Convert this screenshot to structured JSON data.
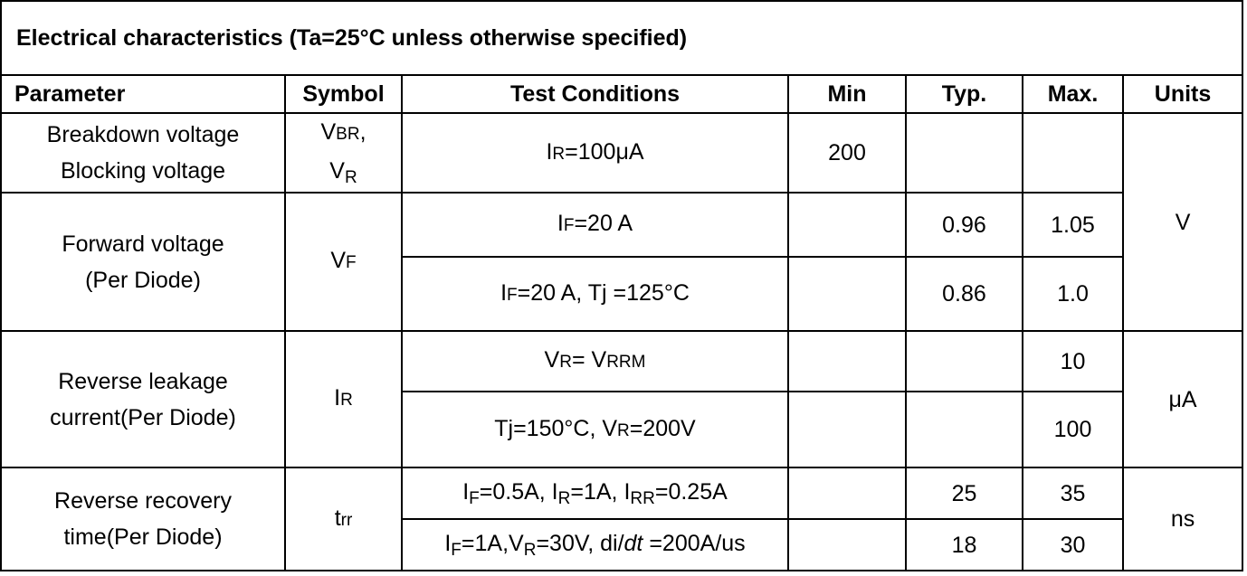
{
  "title": "Electrical characteristics (Ta=25°C unless otherwise specified)",
  "headers": {
    "parameter": "Parameter",
    "symbol": "Symbol",
    "conditions": "Test Conditions",
    "min": "Min",
    "typ": "Typ.",
    "max": "Max.",
    "units": "Units"
  },
  "rows": {
    "breakdown": {
      "param_line1": "Breakdown voltage",
      "param_line2": "Blocking voltage",
      "sym1_main": "V",
      "sym1_sub": "BR",
      "sym1_suffix": ",",
      "sym2_main": "V",
      "sym2_sub": "R",
      "cond_main": "I",
      "cond_sub": "R",
      "cond_rest": "=100μA",
      "min": "200",
      "typ": "",
      "max": ""
    },
    "forward": {
      "param_line1": "Forward voltage",
      "param_line2": "(Per Diode)",
      "sym_main": "V",
      "sym_sub": "F",
      "c1_main": "I",
      "c1_sub": "F",
      "c1_rest": "=20 A",
      "c1_min": "",
      "c1_typ": "0.96",
      "c1_max": "1.05",
      "c2_main": "I",
      "c2_sub": "F",
      "c2_rest": "=20 A, Tj =125°C",
      "c2_min": "",
      "c2_typ": "0.86",
      "c2_max": "1.0"
    },
    "units_v": "V",
    "leakage": {
      "param_line1": "Reverse leakage",
      "param_line2": "current(Per Diode)",
      "sym_main": "I",
      "sym_sub": "R",
      "c1_a": "V",
      "c1_a_sub": "R",
      "c1_b": "= V",
      "c1_b_sub": "RRM",
      "c1_min": "",
      "c1_typ": "",
      "c1_max": "10",
      "c2_a": "Tj=150°C, V",
      "c2_a_sub": "R",
      "c2_b": "=200V",
      "c2_min": "",
      "c2_typ": "",
      "c2_max": "100",
      "units": "μA"
    },
    "recovery": {
      "param_line1": "Reverse recovery",
      "param_line2": "time(Per Diode)",
      "sym_main": "t",
      "sym_sub": "rr",
      "c1_p1": "I",
      "c1_s1": "F",
      "c1_p2": "=0.5A, I",
      "c1_s2": "R",
      "c1_p3": "=1A, I",
      "c1_s3": "RR",
      "c1_p4": "=0.25A",
      "c1_min": "",
      "c1_typ": "25",
      "c1_max": "35",
      "c2_p1": "I",
      "c2_s1": "F",
      "c2_p2": "=1A,V",
      "c2_s2": "R",
      "c2_p3": "=30V, di/",
      "c2_dt": "dt",
      "c2_p4": " =200A/us",
      "c2_min": "",
      "c2_typ": "18",
      "c2_max": "30",
      "units": "ns"
    }
  }
}
